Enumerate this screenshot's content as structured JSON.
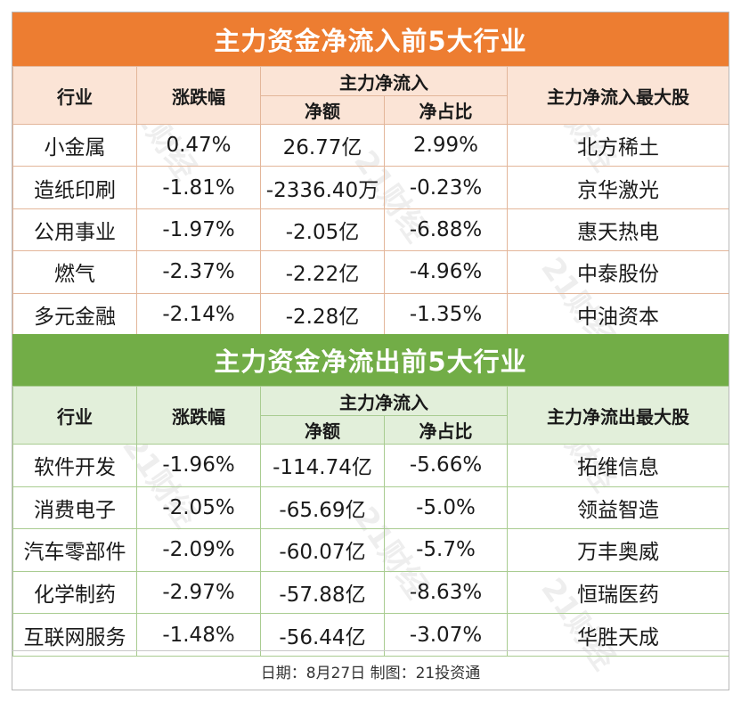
{
  "inflow": {
    "title": "主力资金净流入前5大行业",
    "headers": {
      "industry": "行业",
      "change": "涨跌幅",
      "netflow_group": "主力净流入",
      "net_amount": "净额",
      "net_ratio": "净占比",
      "top_stock": "主力净流入最大股"
    },
    "rows": [
      {
        "industry": "小金属",
        "change": "0.47%",
        "net_amount": "26.77亿",
        "net_ratio": "2.99%",
        "top_stock": "北方稀土"
      },
      {
        "industry": "造纸印刷",
        "change": "-1.81%",
        "net_amount": "-2336.40万",
        "net_ratio": "-0.23%",
        "top_stock": "京华激光"
      },
      {
        "industry": "公用事业",
        "change": "-1.97%",
        "net_amount": "-2.05亿",
        "net_ratio": "-6.88%",
        "top_stock": "惠天热电"
      },
      {
        "industry": "燃气",
        "change": "-2.37%",
        "net_amount": "-2.22亿",
        "net_ratio": "-4.96%",
        "top_stock": "中泰股份"
      },
      {
        "industry": "多元金融",
        "change": "-2.14%",
        "net_amount": "-2.28亿",
        "net_ratio": "-1.35%",
        "top_stock": "中油资本"
      }
    ]
  },
  "outflow": {
    "title": "主力资金净流出前5大行业",
    "headers": {
      "industry": "行业",
      "change": "涨跌幅",
      "netflow_group": "主力净流入",
      "net_amount": "净额",
      "net_ratio": "净占比",
      "top_stock": "主力净流出最大股"
    },
    "rows": [
      {
        "industry": "软件开发",
        "change": "-1.96%",
        "net_amount": "-114.74亿",
        "net_ratio": "-5.66%",
        "top_stock": "拓维信息"
      },
      {
        "industry": "消费电子",
        "change": "-2.05%",
        "net_amount": "-65.69亿",
        "net_ratio": "-5.0%",
        "top_stock": "领益智造"
      },
      {
        "industry": "汽车零部件",
        "change": "-2.09%",
        "net_amount": "-60.07亿",
        "net_ratio": "-5.7%",
        "top_stock": "万丰奥威"
      },
      {
        "industry": "化学制药",
        "change": "-2.97%",
        "net_amount": "-57.88亿",
        "net_ratio": "-8.63%",
        "top_stock": "恒瑞医药"
      },
      {
        "industry": "互联网服务",
        "change": "-1.48%",
        "net_amount": "-56.44亿",
        "net_ratio": "-3.07%",
        "top_stock": "华胜天成"
      }
    ]
  },
  "footer": "日期：8月27日 制图：21投资通",
  "watermark": "21财经",
  "colors": {
    "inflow_accent": "#ed7d31",
    "outflow_accent": "#72ad47"
  }
}
